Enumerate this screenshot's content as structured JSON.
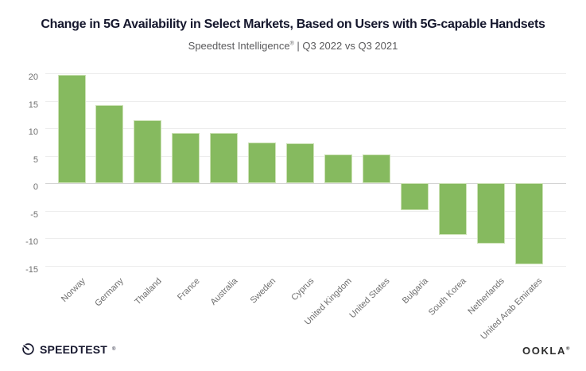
{
  "header": {
    "title": "Change in 5G Availability in Select Markets, Based on Users with 5G-capable Handsets",
    "subtitle_brand": "Speedtest Intelligence",
    "subtitle_reg": "®",
    "subtitle_rest": " | Q3 2022 vs Q3 2021"
  },
  "chart_data": {
    "type": "bar",
    "title": "Change in 5G Availability in Select Markets, Based on Users with 5G-capable Handsets",
    "subtitle": "Speedtest Intelligence® | Q3 2022 vs Q3 2021",
    "categories": [
      "Norway",
      "Germany",
      "Thailand",
      "France",
      "Australia",
      "Sweden",
      "Cyprus",
      "United Kingdom",
      "United States",
      "Bulgaria",
      "South Korea",
      "Netherlands",
      "United Arab Emirates"
    ],
    "values": [
      19.8,
      14.2,
      11.5,
      9.2,
      9.2,
      7.4,
      7.3,
      5.3,
      5.3,
      -4.9,
      -9.4,
      -11.0,
      -14.8
    ],
    "xlabel": "",
    "ylabel": "",
    "yticks": [
      20,
      15,
      10,
      5,
      0,
      -5,
      -10,
      -15
    ],
    "ylim": [
      -15.6,
      20.6
    ],
    "grid": true,
    "legend": "none",
    "bar_color": "#86ba5f"
  },
  "footer": {
    "speedtest_label": "SPEEDTEST",
    "speedtest_reg": "®",
    "ookla_label": "OOKLA",
    "ookla_reg": "®"
  },
  "colors": {
    "bar": "#86ba5f",
    "bar_border": "#cde2b7",
    "title_text": "#15172d",
    "subtitle_text": "#5a5a5c",
    "axis_text": "#6e6e6e",
    "gridline": "#ededed",
    "zero_line": "#d4d4d4",
    "background": "#ffffff"
  }
}
